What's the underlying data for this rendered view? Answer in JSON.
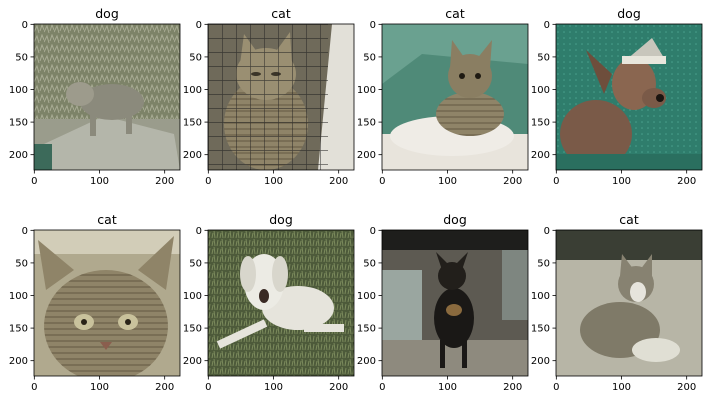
{
  "panels": [
    {
      "title": "dog",
      "scene": "dog-in-grass-yard"
    },
    {
      "title": "cat",
      "scene": "cat-in-wire-crate"
    },
    {
      "title": "cat",
      "scene": "cat-lying-on-white-cushion"
    },
    {
      "title": "dog",
      "scene": "dog-wearing-santa-hat-on-teal"
    },
    {
      "title": "cat",
      "scene": "tabby-cat-closeup"
    },
    {
      "title": "dog",
      "scene": "white-dog-lying-on-grass"
    },
    {
      "title": "dog",
      "scene": "black-dog-outdoors"
    },
    {
      "title": "cat",
      "scene": "kitten-on-floor"
    }
  ],
  "axes": {
    "x_ticks": [
      "0",
      "100",
      "200"
    ],
    "y_ticks": [
      "0",
      "50",
      "100",
      "150",
      "200"
    ]
  },
  "palette": {
    "axis": "#000000",
    "title": "#000000"
  }
}
